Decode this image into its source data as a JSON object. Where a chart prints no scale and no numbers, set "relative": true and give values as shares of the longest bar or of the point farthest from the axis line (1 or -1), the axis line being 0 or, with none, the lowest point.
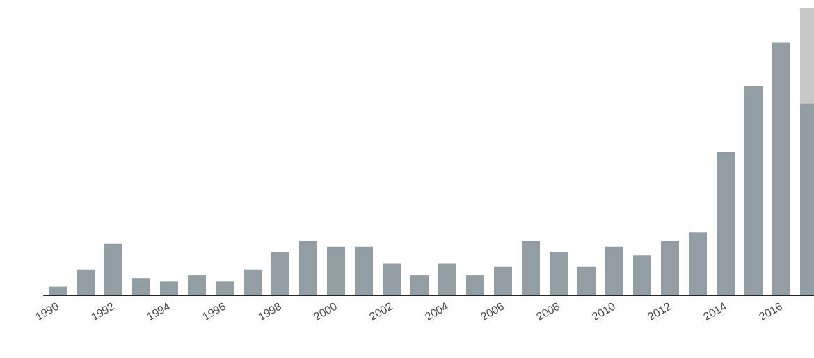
{
  "chart_data": {
    "type": "bar",
    "relative": true,
    "stacked": true,
    "categories": [
      "1990",
      null,
      "1992",
      null,
      "1994",
      null,
      "1996",
      null,
      "1998",
      null,
      "2000",
      null,
      "2002",
      null,
      "2004",
      null,
      "2006",
      null,
      "2008",
      null,
      "2010",
      null,
      "2012",
      null,
      "2014",
      null,
      "2016",
      null
    ],
    "series": [
      {
        "color": "#939ea4",
        "values": [
          0.03,
          0.09,
          0.18,
          0.06,
          0.05,
          0.07,
          0.05,
          0.09,
          0.15,
          0.19,
          0.17,
          0.17,
          0.11,
          0.07,
          0.11,
          0.07,
          0.1,
          0.19,
          0.15,
          0.1,
          0.17,
          0.14,
          0.19,
          0.22,
          0.5,
          0.73,
          0.88,
          0.67
        ]
      },
      {
        "color": "#c8c8c8",
        "values": [
          null,
          null,
          null,
          null,
          null,
          null,
          null,
          null,
          null,
          null,
          null,
          null,
          null,
          null,
          null,
          null,
          null,
          null,
          null,
          null,
          null,
          null,
          null,
          null,
          null,
          null,
          null,
          0.33
        ]
      }
    ]
  }
}
